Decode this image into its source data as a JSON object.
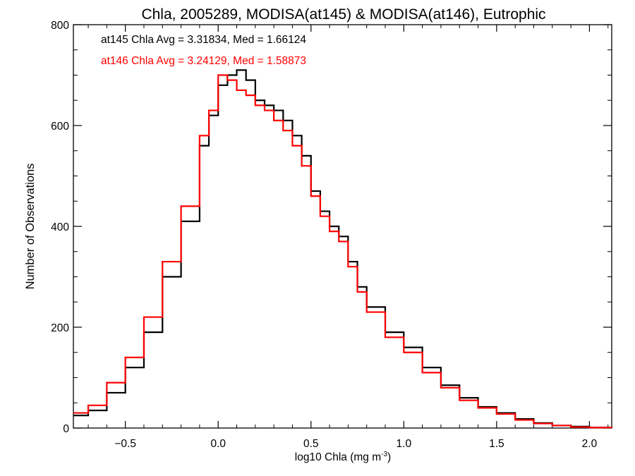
{
  "chart_data": {
    "type": "line",
    "title": "Chla, 2005289, MODISA(at145) & MODISA(at146), Eutrophic",
    "xlabel": "log10 Chla (mg m",
    "xlabel_superscript": "-3",
    "xlabel_suffix": ")",
    "ylabel": "Number of Observations",
    "xlim": [
      -0.78,
      2.12
    ],
    "ylim": [
      0,
      800
    ],
    "xticks": [
      -0.5,
      0.0,
      0.5,
      1.0,
      1.5,
      2.0
    ],
    "xtick_labels": [
      "−0.5",
      "0.0",
      "0.5",
      "1.0",
      "1.5",
      "2.0"
    ],
    "yticks": [
      0,
      200,
      400,
      600,
      800
    ],
    "ytick_labels": [
      "0",
      "200",
      "400",
      "600",
      "800"
    ],
    "grid": false,
    "step": true,
    "annotations": [
      {
        "text": "at145 Chla Avg = 3.31834, Med = 1.66124",
        "color": "#000000"
      },
      {
        "text": "at146 Chla Avg = 3.24129, Med = 1.58873",
        "color": "#ff0000"
      }
    ],
    "series": [
      {
        "color": "#000000",
        "x": [
          -0.78,
          -0.7,
          -0.6,
          -0.5,
          -0.4,
          -0.3,
          -0.2,
          -0.1,
          -0.05,
          0.0,
          0.05,
          0.1,
          0.15,
          0.2,
          0.25,
          0.3,
          0.35,
          0.4,
          0.45,
          0.5,
          0.55,
          0.6,
          0.65,
          0.7,
          0.75,
          0.8,
          0.9,
          1.0,
          1.1,
          1.2,
          1.3,
          1.4,
          1.5,
          1.6,
          1.7,
          1.8,
          1.9,
          2.0,
          2.12
        ],
        "y": [
          25,
          35,
          70,
          120,
          190,
          300,
          410,
          560,
          620,
          680,
          700,
          710,
          690,
          650,
          640,
          630,
          610,
          580,
          540,
          470,
          430,
          400,
          380,
          330,
          280,
          240,
          190,
          160,
          120,
          85,
          60,
          42,
          30,
          18,
          10,
          5,
          3,
          1,
          0
        ]
      },
      {
        "color": "#ff0000",
        "x": [
          -0.78,
          -0.7,
          -0.6,
          -0.5,
          -0.4,
          -0.3,
          -0.2,
          -0.1,
          -0.05,
          0.0,
          0.05,
          0.1,
          0.15,
          0.2,
          0.25,
          0.3,
          0.35,
          0.4,
          0.45,
          0.5,
          0.55,
          0.6,
          0.65,
          0.7,
          0.75,
          0.8,
          0.9,
          1.0,
          1.1,
          1.2,
          1.3,
          1.4,
          1.5,
          1.6,
          1.7,
          1.8,
          1.9,
          2.0,
          2.12
        ],
        "y": [
          30,
          45,
          90,
          140,
          220,
          330,
          440,
          580,
          630,
          700,
          690,
          670,
          660,
          640,
          630,
          610,
          590,
          560,
          520,
          460,
          420,
          390,
          370,
          320,
          270,
          230,
          180,
          150,
          110,
          80,
          55,
          40,
          28,
          16,
          9,
          5,
          2,
          1,
          0
        ]
      }
    ]
  }
}
